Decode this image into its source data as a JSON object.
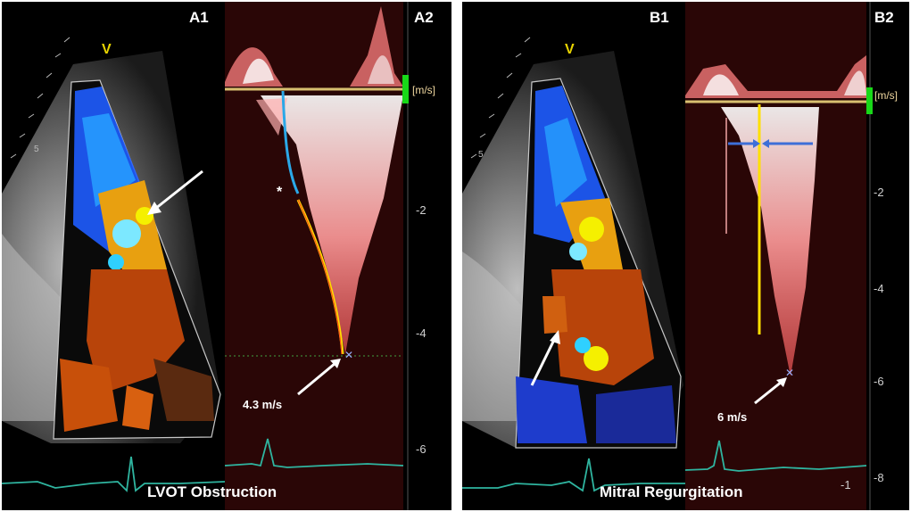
{
  "panels": [
    {
      "id": "A",
      "left_label": "A1",
      "right_label": "A2",
      "caption": "LVOT Obstruction",
      "measurement": "4.3 m/s",
      "marker": "*",
      "view_marker": "V",
      "depth_label": "5",
      "unit": "[m/s]",
      "ticks": [
        "-2",
        "-4",
        "-6"
      ]
    },
    {
      "id": "B",
      "left_label": "B1",
      "right_label": "B2",
      "caption": "Mitral Regurgitation",
      "measurement": "6 m/s",
      "view_marker": "V",
      "depth_label": "5",
      "unit": "[m/s]",
      "ticks": [
        "-2",
        "-4",
        "-6",
        "-8",
        "-1"
      ]
    }
  ],
  "colors": {
    "background": "#ffffff",
    "flow_blue": "#1e5cff",
    "flow_orange": "#c8500a",
    "doppler_red": "#ff5a5a",
    "trace_blue": "#2ba8e8",
    "trace_yellow": "#ffe000",
    "ecg": "#2fb5a0",
    "scale_green": "#18d818"
  }
}
